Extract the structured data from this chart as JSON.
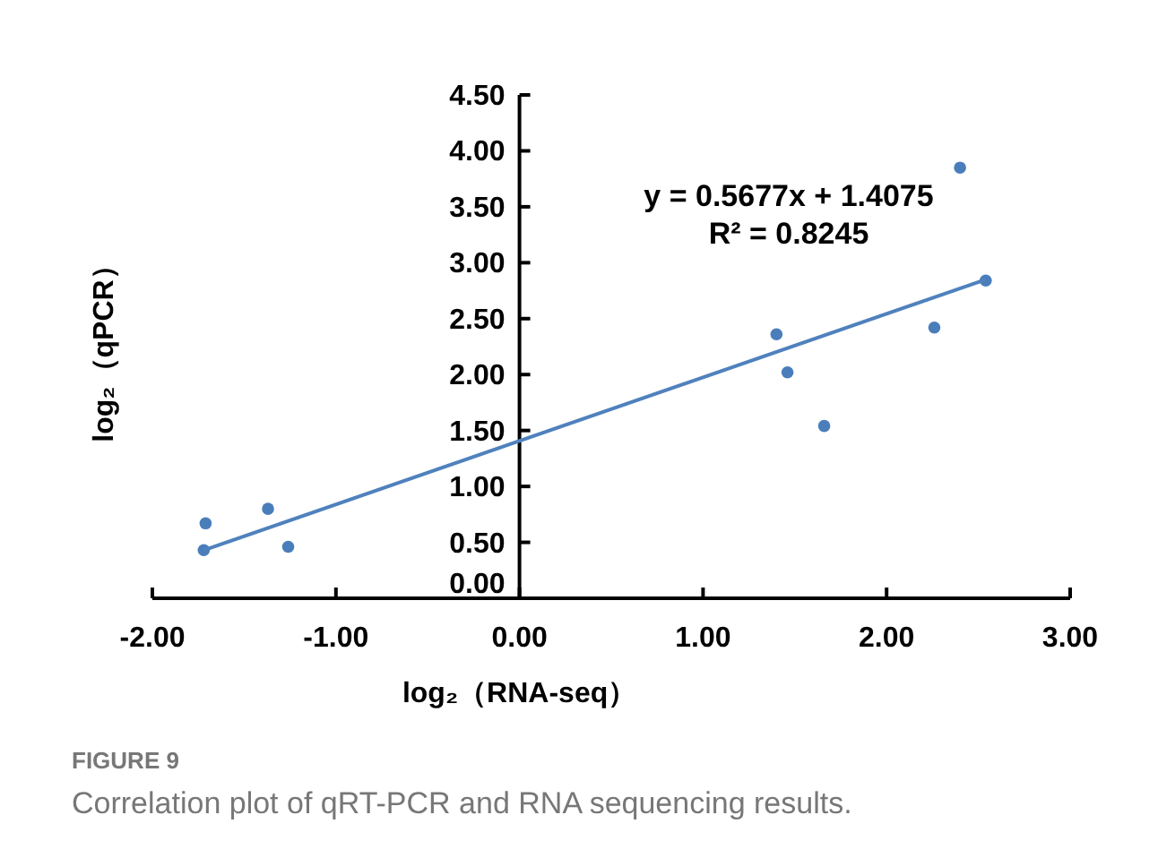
{
  "chart_data": {
    "type": "scatter",
    "xlabel": "log₂（RNA-seq）",
    "ylabel": "log₂（qPCR）",
    "xlim": [
      -2,
      3
    ],
    "xticks": [
      {
        "value": -2,
        "label": "-2.00"
      },
      {
        "value": -1,
        "label": "-1.00"
      },
      {
        "value": 0,
        "label": "0.00"
      },
      {
        "value": 1,
        "label": "1.00"
      },
      {
        "value": 2,
        "label": "2.00"
      },
      {
        "value": 3,
        "label": "3.00"
      }
    ],
    "ylim": [
      0,
      4.5
    ],
    "yticks": [
      {
        "value": 0,
        "label": "0.00"
      },
      {
        "value": 0.5,
        "label": "0.50"
      },
      {
        "value": 1,
        "label": "1.00"
      },
      {
        "value": 1.5,
        "label": "1.50"
      },
      {
        "value": 2,
        "label": "2.00"
      },
      {
        "value": 2.5,
        "label": "2.50"
      },
      {
        "value": 3,
        "label": "3.00"
      },
      {
        "value": 3.5,
        "label": "3.50"
      },
      {
        "value": 4,
        "label": "4.00"
      },
      {
        "value": 4.5,
        "label": "4.50"
      }
    ],
    "series": [
      {
        "color": "#4a7ebb",
        "x": [
          -1.71,
          -1.72,
          -1.37,
          -1.26,
          1.4,
          1.46,
          1.66,
          2.26,
          2.4,
          2.54
        ],
        "values": [
          0.67,
          0.43,
          0.8,
          0.46,
          2.36,
          2.02,
          1.54,
          2.42,
          3.85,
          2.84
        ]
      },
      {
        "type": "line",
        "color": "#4f81bd",
        "x": [
          -1.72,
          2.54
        ],
        "values": [
          0.43,
          2.85
        ],
        "marker": "none"
      }
    ],
    "annotations": [
      "y = 0.5677x + 1.4075",
      "R² = 0.8245",
      "FIGURE 9",
      "Correlation plot of qRT-PCR and RNA sequencing results."
    ],
    "grid": false,
    "marker": "circle",
    "line_style": "solid"
  }
}
